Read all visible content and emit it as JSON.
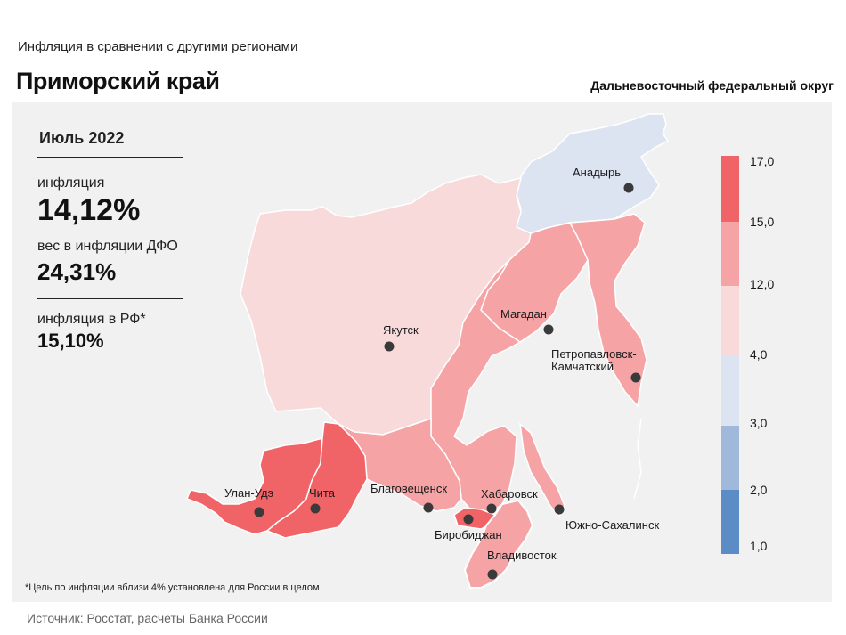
{
  "header": {
    "subtitle": "Инфляция  в сравнении  с другими  регионами",
    "title": "Приморский край",
    "district": "Дальневосточный федеральный округ"
  },
  "stats": {
    "period": "Июль 2022",
    "inflation_label": "инфляция",
    "inflation_value": "14,12%",
    "weight_label": "вес в инфляции  ДФО",
    "weight_value": "24,31%",
    "rf_label": "инфляция  в РФ*",
    "rf_value": "15,10%"
  },
  "footnote": "*Цель по инфляции вблизи 4% установлена для России в целом",
  "source": "Источник: Росстат, расчеты  Банка  России",
  "legend": {
    "ticks": [
      "17,0",
      "15,0",
      "12,0",
      "4,0",
      "3,0",
      "2,0",
      "1,0"
    ],
    "colors": [
      "#f06468",
      "#f5a3a5",
      "#f8dadb",
      "#dce4f1",
      "#a0b9da",
      "#5b8cc6"
    ]
  },
  "colors": {
    "high": "#f06468",
    "mid": "#f5a3a5",
    "low": "#f8dadb",
    "cool": "#dce4f1",
    "dot": "#3a3a3a"
  },
  "cities": {
    "anadyr": "Анадырь",
    "yakutsk": "Якутск",
    "magadan": "Магадан",
    "petropavlovsk_1": "Петропавловск-",
    "petropavlovsk_2": "Камчатский",
    "ulan_ude": "Улан-Удэ",
    "chita": "Чита",
    "blagoveshchensk": "Благовещенск",
    "khabarovsk": "Хабаровск",
    "birobidzhan": "Биробиджан",
    "yuzhno": "Южно-Сахалинск",
    "vladivostok": "Владивосток"
  }
}
